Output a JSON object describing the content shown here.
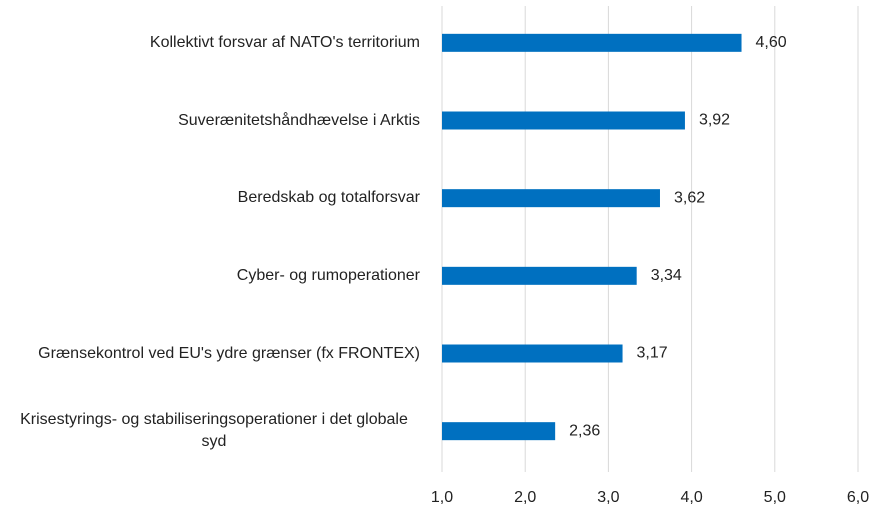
{
  "chart_data": {
    "type": "bar",
    "orientation": "horizontal",
    "categories": [
      "Kollektivt forsvar af NATO's territorium",
      "Suverænitetshåndhævelse i Arktis",
      "Beredskab og totalforsvar",
      "Cyber- og rumoperationer",
      "Grænsekontrol ved EU's ydre grænser (fx FRONTEX)",
      "Krisestyrings- og stabiliseringsoperationer i det globale syd"
    ],
    "values": [
      4.6,
      3.92,
      3.62,
      3.34,
      3.17,
      2.36
    ],
    "value_labels": [
      "4,60",
      "3,92",
      "3,62",
      "3,34",
      "3,17",
      "2,36"
    ],
    "color": "#0070c0",
    "xlim": [
      1,
      6
    ],
    "xticks": [
      {
        "value": 1,
        "label": "1,0"
      },
      {
        "value": 2,
        "label": "2,0"
      },
      {
        "value": 3,
        "label": "3,0"
      },
      {
        "value": 4,
        "label": "4,0"
      },
      {
        "value": 5,
        "label": "5,0"
      },
      {
        "value": 6,
        "label": "6,0"
      }
    ],
    "grid": true
  }
}
